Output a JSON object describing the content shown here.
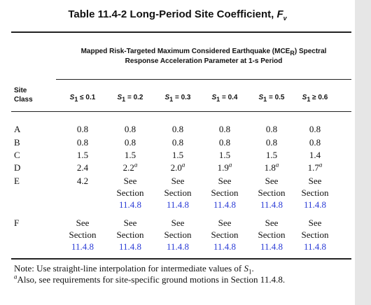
{
  "table": {
    "title_main": "Table 11.4-2 Long-Period Site Coefficient,",
    "title_symbol": "F",
    "title_subscript": "v",
    "heading_line1_a": "Mapped Risk-Targeted Maximum Considered Earthquake (MCE",
    "heading_line1_sub": "R",
    "heading_line1_b": ") Spectral",
    "heading_line2": "Response Acceleration Parameter at 1-s Period",
    "site_label_1": "Site",
    "site_label_2": "Class",
    "columns": [
      {
        "sym": "S",
        "sub": "1",
        "rel": " ≤ 0.1"
      },
      {
        "sym": "S",
        "sub": "1",
        "rel": " = 0.2"
      },
      {
        "sym": "S",
        "sub": "1",
        "rel": " = 0.3"
      },
      {
        "sym": "S",
        "sub": "1",
        "rel": " = 0.4"
      },
      {
        "sym": "S",
        "sub": "1",
        "rel": " = 0.5"
      },
      {
        "sym": "S",
        "sub": "1",
        "rel": " ≥ 0.6"
      }
    ],
    "rows": [
      {
        "label": "A",
        "values": [
          "0.8",
          "0.8",
          "0.8",
          "0.8",
          "0.8",
          "0.8"
        ]
      },
      {
        "label": "B",
        "values": [
          "0.8",
          "0.8",
          "0.8",
          "0.8",
          "0.8",
          "0.8"
        ]
      },
      {
        "label": "C",
        "values": [
          "1.5",
          "1.5",
          "1.5",
          "1.5",
          "1.5",
          "1.4"
        ]
      },
      {
        "label": "D",
        "values": [
          "2.4",
          "2.2",
          "2.0",
          "1.9",
          "1.8",
          "1.7"
        ],
        "footnote_marks": [
          "",
          "a",
          "a",
          "a",
          "a",
          "a"
        ]
      },
      {
        "label": "E",
        "first_value": "4.2"
      },
      {
        "label": "F"
      }
    ],
    "see_word": "See",
    "section_word": "Section",
    "section_ref": "11.4.8",
    "note_prefix": "Note: Use straight-line interpolation for intermediate values of",
    "note_symbol": "S",
    "note_sub": "1",
    "note_period": ".",
    "footnote_mark": "a",
    "footnote_text": "Also, see requirements for site-specific ground motions in Section 11.4.8."
  }
}
